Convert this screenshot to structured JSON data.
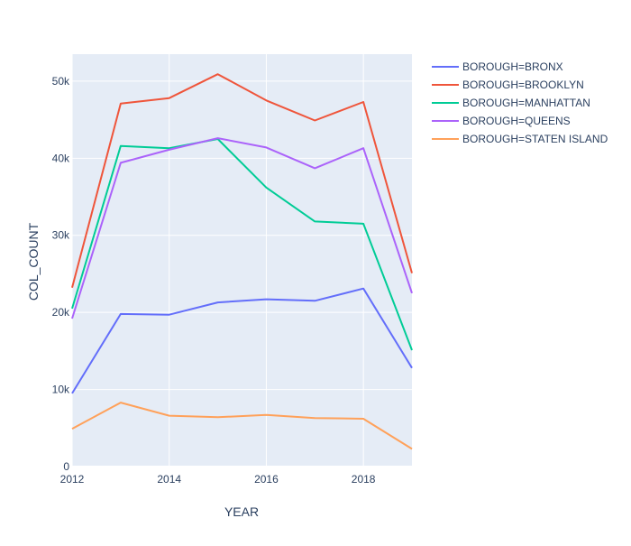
{
  "chart_data": {
    "type": "line",
    "title": "",
    "xlabel": "YEAR",
    "ylabel": "COL_COUNT",
    "xlim": [
      2012,
      2019
    ],
    "ylim": [
      0,
      53500
    ],
    "x_ticks": [
      {
        "value": 2012,
        "label": "2012"
      },
      {
        "value": 2014,
        "label": "2014"
      },
      {
        "value": 2016,
        "label": "2016"
      },
      {
        "value": 2018,
        "label": "2018"
      }
    ],
    "y_ticks": [
      {
        "value": 0,
        "label": "0"
      },
      {
        "value": 10000,
        "label": "10k"
      },
      {
        "value": 20000,
        "label": "20k"
      },
      {
        "value": 30000,
        "label": "30k"
      },
      {
        "value": 40000,
        "label": "40k"
      },
      {
        "value": 50000,
        "label": "50k"
      }
    ],
    "grid": true,
    "legend_position": "right",
    "plot_background": "#e5ecf6",
    "x": [
      2012,
      2013,
      2014,
      2015,
      2016,
      2017,
      2018,
      2019
    ],
    "series": [
      {
        "name": "BOROUGH=BRONX",
        "color": "#636efa",
        "values": [
          9500,
          19800,
          19700,
          21300,
          21700,
          21500,
          23100,
          12800
        ]
      },
      {
        "name": "BOROUGH=BROOKLYN",
        "color": "#ef553b",
        "values": [
          23200,
          47100,
          47800,
          50900,
          47500,
          44900,
          47300,
          25100
        ]
      },
      {
        "name": "BOROUGH=MANHATTAN",
        "color": "#00cc96",
        "values": [
          20500,
          41600,
          41300,
          42500,
          36200,
          31800,
          31500,
          15100
        ]
      },
      {
        "name": "BOROUGH=QUEENS",
        "color": "#ab63fa",
        "values": [
          19200,
          39400,
          41100,
          42600,
          41400,
          38700,
          41300,
          22500
        ]
      },
      {
        "name": "BOROUGH=STATEN ISLAND",
        "color": "#ffa15a",
        "values": [
          4900,
          8300,
          6600,
          6400,
          6700,
          6300,
          6200,
          2300
        ]
      }
    ]
  }
}
